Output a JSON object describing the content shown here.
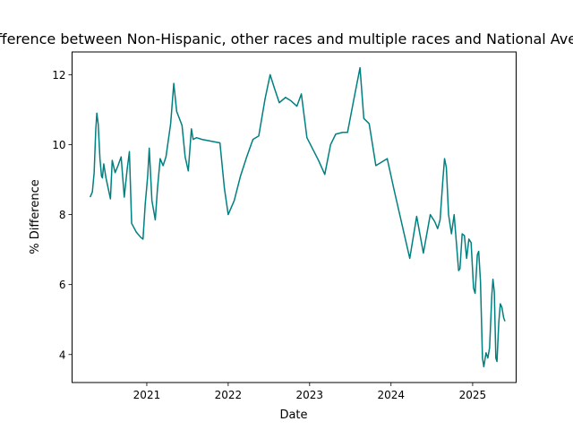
{
  "chart_data": {
    "type": "line",
    "title": "% Difference between Non-Hispanic, other races and multiple races and National Average",
    "xlabel": "Date",
    "ylabel": "% Difference",
    "xlim": [
      "2020-02-01",
      "2025-07-15"
    ],
    "ylim": [
      3.2,
      12.65
    ],
    "x_ticks": [
      {
        "date": "2021-01-01",
        "label": "2021"
      },
      {
        "date": "2022-01-01",
        "label": "2022"
      },
      {
        "date": "2023-01-01",
        "label": "2023"
      },
      {
        "date": "2024-01-01",
        "label": "2024"
      },
      {
        "date": "2025-01-01",
        "label": "2025"
      }
    ],
    "y_ticks": [
      4,
      6,
      8,
      10,
      12
    ],
    "grid": false,
    "legend": "none",
    "series": [
      {
        "color": "#008080",
        "points": [
          [
            "2020-04-22",
            8.5
          ],
          [
            "2020-05-02",
            8.65
          ],
          [
            "2020-05-10",
            9.2
          ],
          [
            "2020-05-17",
            10.4
          ],
          [
            "2020-05-22",
            10.9
          ],
          [
            "2020-05-28",
            10.6
          ],
          [
            "2020-06-05",
            9.6
          ],
          [
            "2020-06-12",
            9.1
          ],
          [
            "2020-06-16",
            9.05
          ],
          [
            "2020-06-22",
            9.45
          ],
          [
            "2020-07-02",
            9.05
          ],
          [
            "2020-07-12",
            8.75
          ],
          [
            "2020-07-22",
            8.45
          ],
          [
            "2020-07-30",
            9.55
          ],
          [
            "2020-08-12",
            9.2
          ],
          [
            "2020-08-25",
            9.4
          ],
          [
            "2020-09-08",
            9.65
          ],
          [
            "2020-09-22",
            8.5
          ],
          [
            "2020-10-05",
            9.3
          ],
          [
            "2020-10-15",
            9.8
          ],
          [
            "2020-10-25",
            7.75
          ],
          [
            "2020-11-15",
            7.5
          ],
          [
            "2020-12-05",
            7.35
          ],
          [
            "2020-12-15",
            7.3
          ],
          [
            "2020-12-25",
            8.3
          ],
          [
            "2021-01-05",
            9.1
          ],
          [
            "2021-01-12",
            9.9
          ],
          [
            "2021-01-24",
            8.4
          ],
          [
            "2021-02-08",
            7.85
          ],
          [
            "2021-02-18",
            8.75
          ],
          [
            "2021-03-02",
            9.6
          ],
          [
            "2021-03-15",
            9.4
          ],
          [
            "2021-03-28",
            9.65
          ],
          [
            "2021-04-18",
            10.6
          ],
          [
            "2021-05-02",
            11.75
          ],
          [
            "2021-05-15",
            10.95
          ],
          [
            "2021-06-08",
            10.55
          ],
          [
            "2021-06-22",
            9.65
          ],
          [
            "2021-07-06",
            9.25
          ],
          [
            "2021-07-20",
            10.45
          ],
          [
            "2021-07-28",
            10.15
          ],
          [
            "2021-08-12",
            10.2
          ],
          [
            "2021-09-05",
            10.15
          ],
          [
            "2021-11-25",
            10.05
          ],
          [
            "2021-12-15",
            8.75
          ],
          [
            "2022-01-01",
            8.0
          ],
          [
            "2022-01-28",
            8.4
          ],
          [
            "2022-02-25",
            9.1
          ],
          [
            "2022-03-25",
            9.65
          ],
          [
            "2022-04-22",
            10.15
          ],
          [
            "2022-05-18",
            10.25
          ],
          [
            "2022-06-15",
            11.3
          ],
          [
            "2022-07-08",
            12.0
          ],
          [
            "2022-07-28",
            11.6
          ],
          [
            "2022-08-18",
            11.2
          ],
          [
            "2022-09-15",
            11.35
          ],
          [
            "2022-10-10",
            11.25
          ],
          [
            "2022-11-05",
            11.1
          ],
          [
            "2022-11-25",
            11.45
          ],
          [
            "2022-12-20",
            10.2
          ],
          [
            "2023-02-10",
            9.55
          ],
          [
            "2023-03-10",
            9.15
          ],
          [
            "2023-04-05",
            10.0
          ],
          [
            "2023-04-28",
            10.3
          ],
          [
            "2023-05-28",
            10.35
          ],
          [
            "2023-06-20",
            10.35
          ],
          [
            "2023-07-20",
            11.35
          ],
          [
            "2023-08-15",
            12.2
          ],
          [
            "2023-09-01",
            10.75
          ],
          [
            "2023-09-25",
            10.6
          ],
          [
            "2023-10-25",
            9.4
          ],
          [
            "2023-12-15",
            9.6
          ],
          [
            "2024-01-15",
            8.7
          ],
          [
            "2024-03-25",
            6.75
          ],
          [
            "2024-04-25",
            7.95
          ],
          [
            "2024-05-25",
            6.9
          ],
          [
            "2024-06-25",
            8.0
          ],
          [
            "2024-07-15",
            7.8
          ],
          [
            "2024-07-28",
            7.6
          ],
          [
            "2024-08-08",
            7.85
          ],
          [
            "2024-08-20",
            8.95
          ],
          [
            "2024-08-28",
            9.6
          ],
          [
            "2024-09-05",
            9.35
          ],
          [
            "2024-09-15",
            8.0
          ],
          [
            "2024-09-28",
            7.45
          ],
          [
            "2024-10-10",
            8.0
          ],
          [
            "2024-10-20",
            7.2
          ],
          [
            "2024-10-30",
            6.4
          ],
          [
            "2024-11-05",
            6.45
          ],
          [
            "2024-11-15",
            7.45
          ],
          [
            "2024-11-25",
            7.4
          ],
          [
            "2024-12-05",
            6.75
          ],
          [
            "2024-12-15",
            7.3
          ],
          [
            "2024-12-25",
            7.2
          ],
          [
            "2025-01-05",
            5.9
          ],
          [
            "2025-01-12",
            5.75
          ],
          [
            "2025-01-22",
            6.85
          ],
          [
            "2025-01-28",
            6.95
          ],
          [
            "2025-02-05",
            6.1
          ],
          [
            "2025-02-14",
            3.9
          ],
          [
            "2025-02-20",
            3.65
          ],
          [
            "2025-03-02",
            4.05
          ],
          [
            "2025-03-10",
            3.9
          ],
          [
            "2025-03-18",
            4.2
          ],
          [
            "2025-03-28",
            5.7
          ],
          [
            "2025-04-02",
            6.15
          ],
          [
            "2025-04-08",
            5.8
          ],
          [
            "2025-04-15",
            3.9
          ],
          [
            "2025-04-20",
            3.8
          ],
          [
            "2025-04-28",
            4.9
          ],
          [
            "2025-05-05",
            5.45
          ],
          [
            "2025-05-12",
            5.35
          ],
          [
            "2025-05-20",
            5.05
          ],
          [
            "2025-05-26",
            4.95
          ]
        ]
      }
    ]
  }
}
